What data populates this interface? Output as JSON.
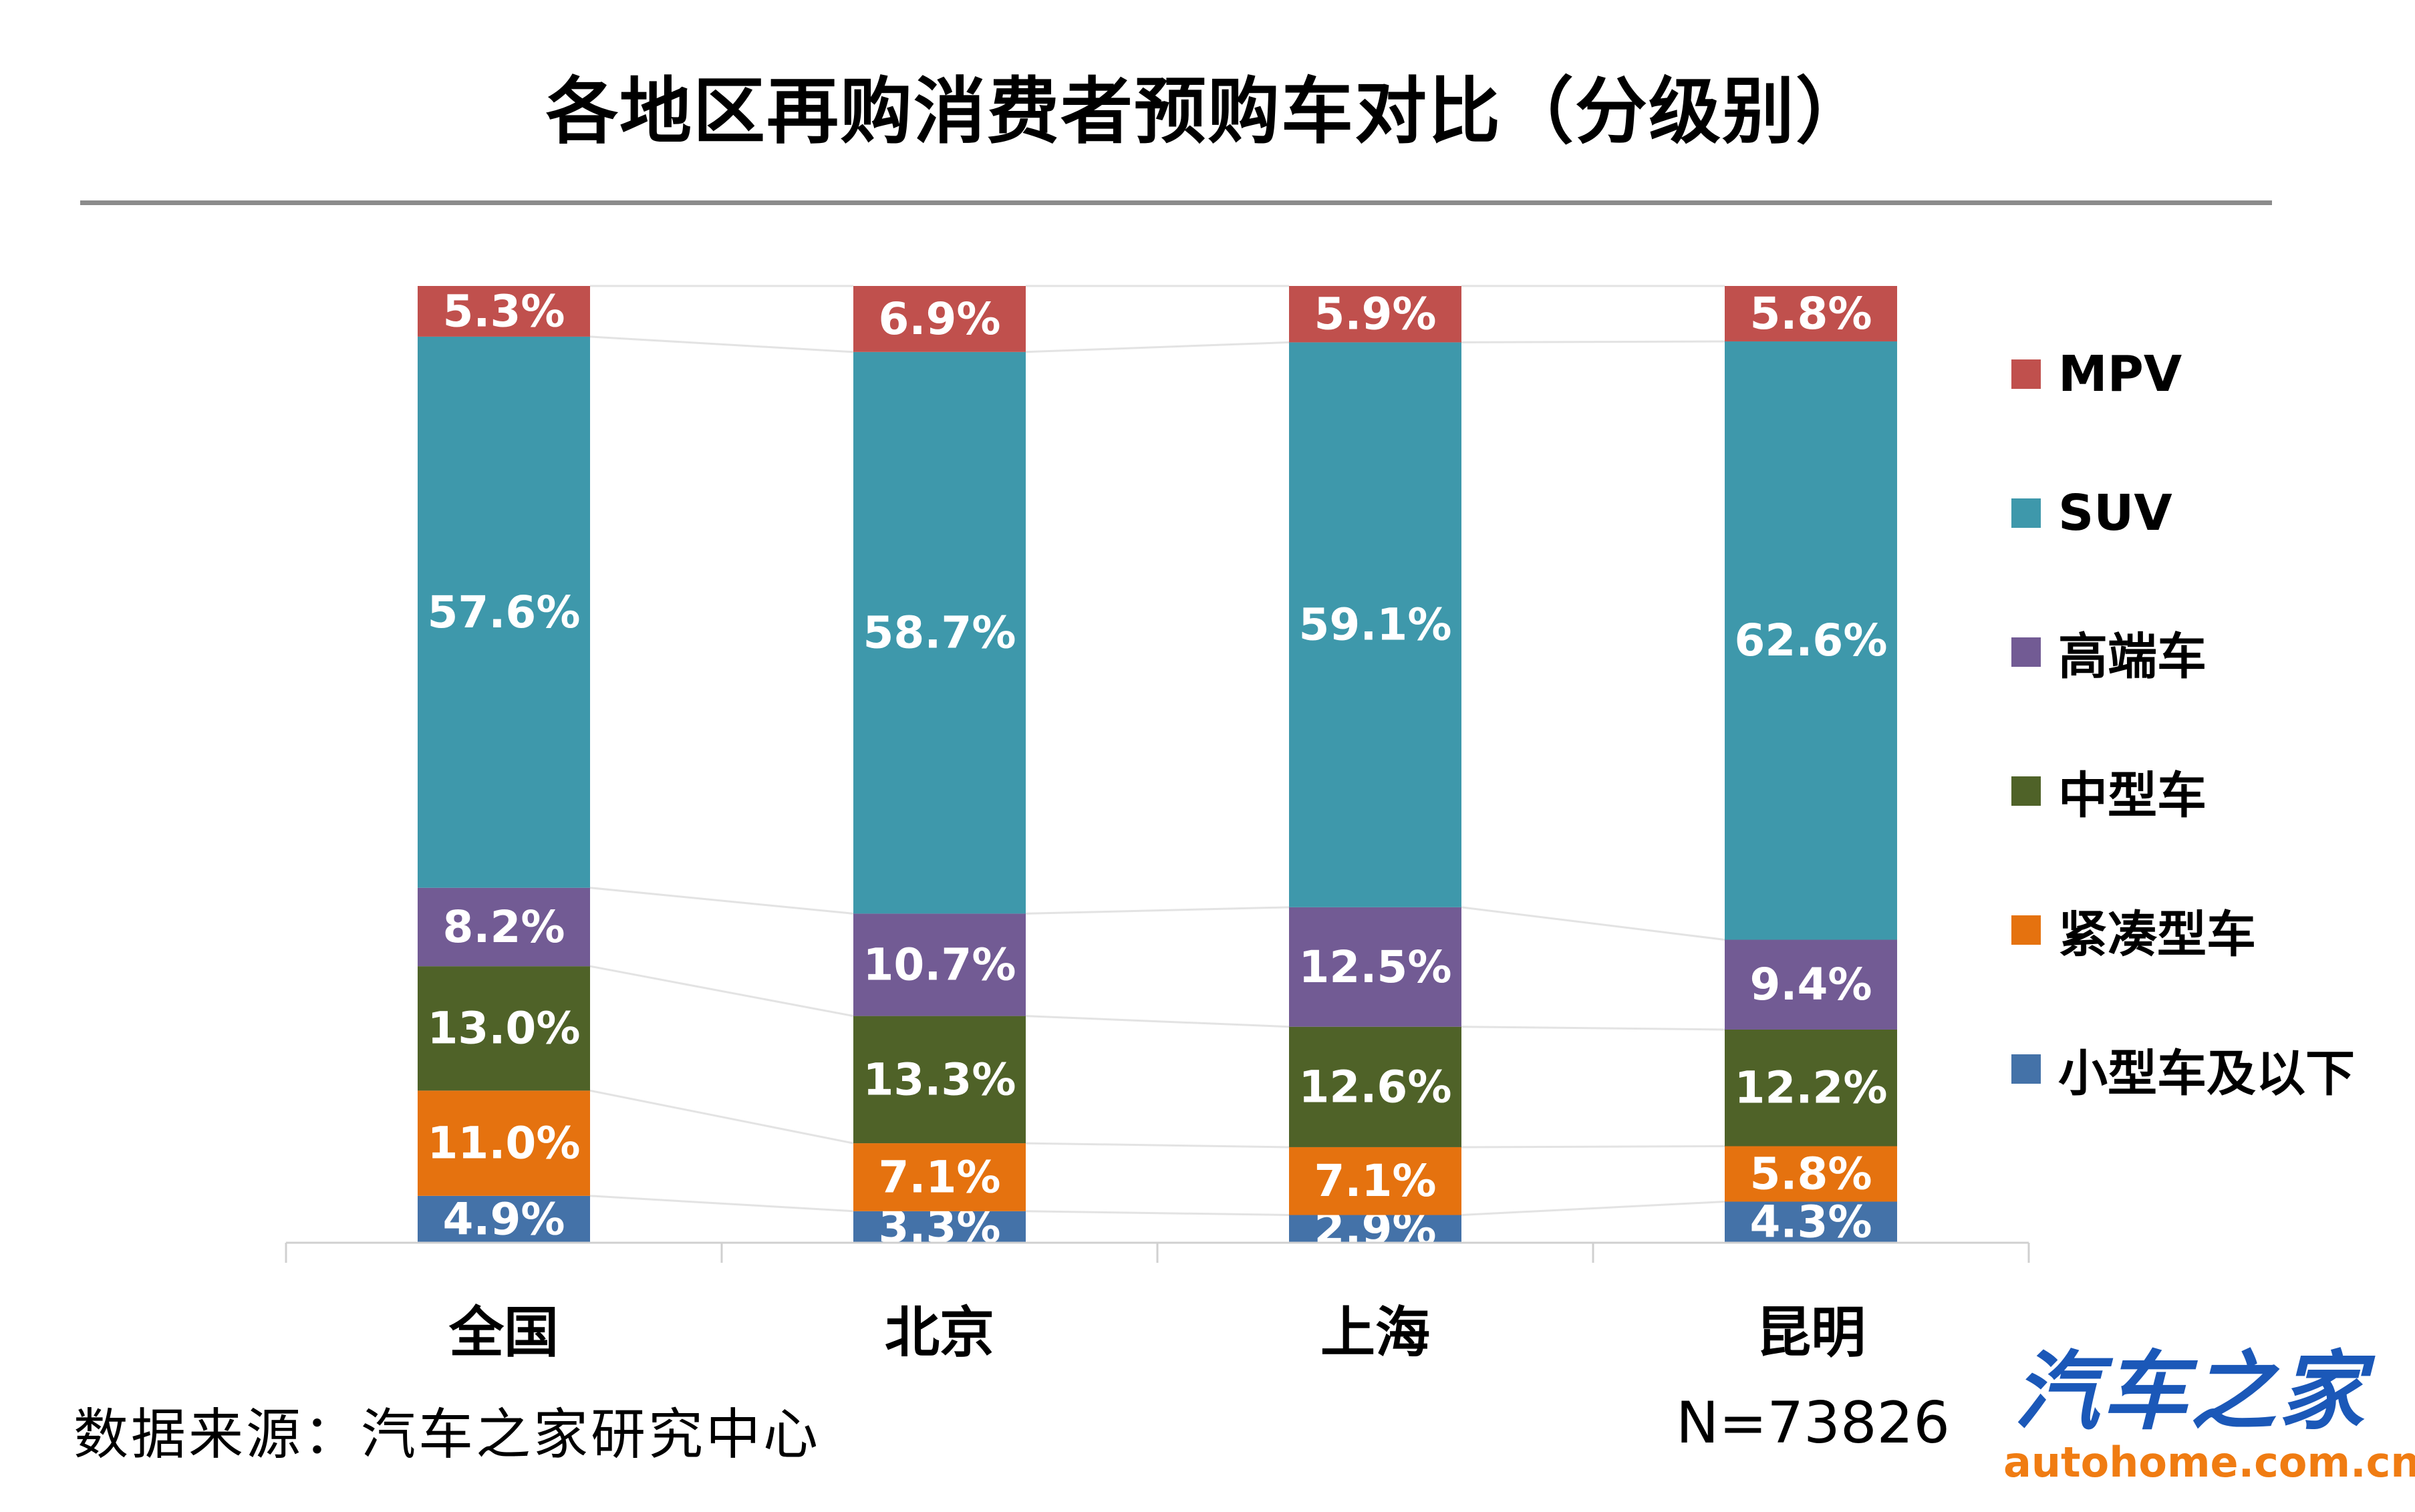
{
  "title": "各地区再购消费者预购车对比（分级别）",
  "source": "数据来源：汽车之家研究中心",
  "sample_size": "N=73826",
  "logo": {
    "main": "汽车之家",
    "sub": "autohome.com.cn"
  },
  "chart_data": {
    "type": "bar",
    "stacked": true,
    "percent_stacked": true,
    "categories": [
      "全国",
      "北京",
      "上海",
      "昆明"
    ],
    "series": [
      {
        "name": "小型车及以下",
        "color": "#4472a8",
        "values": [
          4.9,
          3.3,
          2.9,
          4.3
        ],
        "labels": [
          "4.9%",
          "3.3%",
          "2.9%",
          "4.3%"
        ]
      },
      {
        "name": "紧凑型车",
        "color": "#e5720f",
        "values": [
          11.0,
          7.1,
          7.1,
          5.8
        ],
        "labels": [
          "11.0%",
          "7.1%",
          "7.1%",
          "5.8%"
        ]
      },
      {
        "name": "中型车",
        "color": "#4f6228",
        "values": [
          13.0,
          13.3,
          12.6,
          12.2
        ],
        "labels": [
          "13.0%",
          "13.3%",
          "12.6%",
          "12.2%"
        ]
      },
      {
        "name": "高端车",
        "color": "#725b94",
        "values": [
          8.2,
          10.7,
          12.5,
          9.4
        ],
        "labels": [
          "8.2%",
          "10.7%",
          "12.5%",
          "9.4%"
        ]
      },
      {
        "name": "SUV",
        "color": "#3e98ab",
        "values": [
          57.6,
          58.7,
          59.1,
          62.6
        ],
        "labels": [
          "57.6%",
          "58.7%",
          "59.1%",
          "62.6%"
        ]
      },
      {
        "name": "MPV",
        "color": "#c0504d",
        "values": [
          5.3,
          6.9,
          5.9,
          5.8
        ],
        "labels": [
          "5.3%",
          "6.9%",
          "5.9%",
          "5.8%"
        ]
      }
    ],
    "legend_order": [
      "MPV",
      "SUV",
      "高端车",
      "中型车",
      "紧凑型车",
      "小型车及以下"
    ],
    "legend_position": "right",
    "series_lines": true,
    "grid": false
  }
}
